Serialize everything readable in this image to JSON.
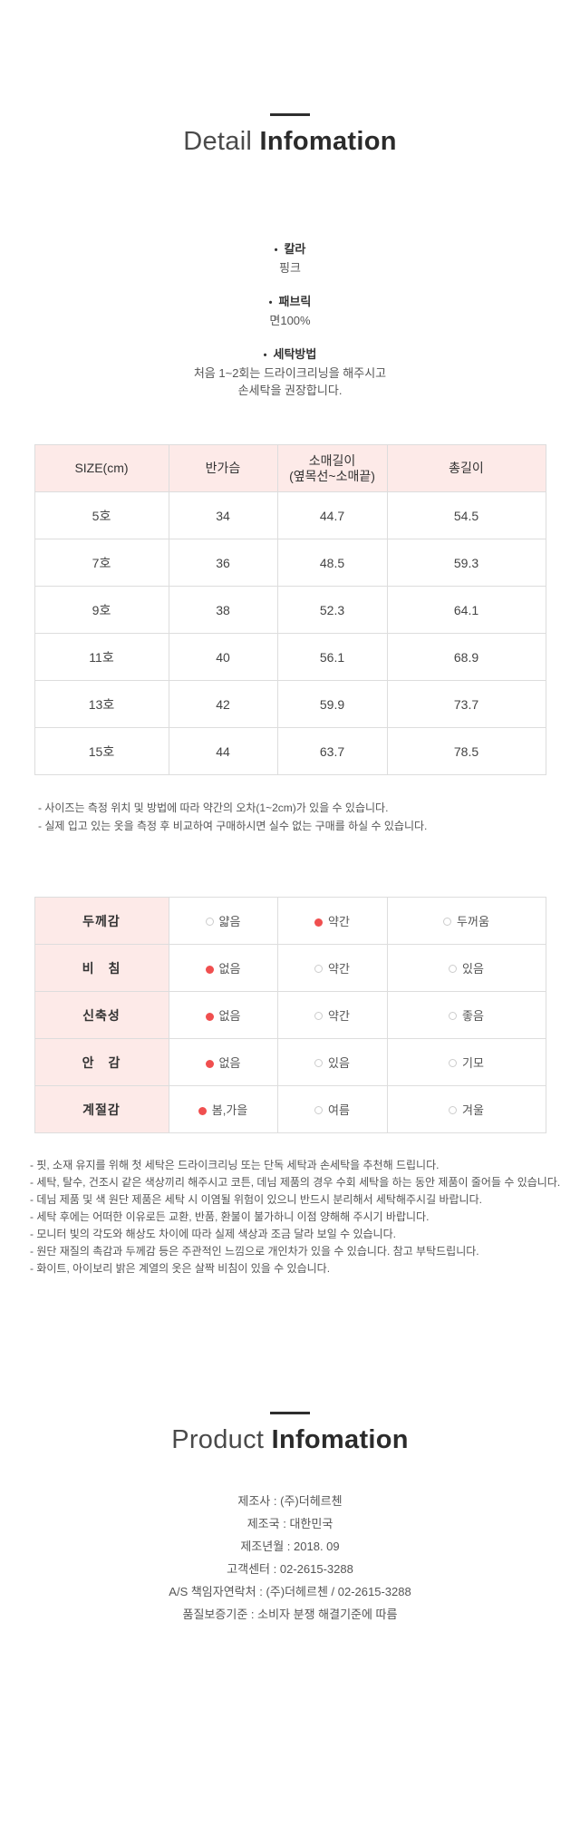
{
  "colors": {
    "table_header_bg": "#fdeae8",
    "table_border": "#dddddd",
    "selected_dot": "#f04f4f",
    "unselected_ring": "#cccccc",
    "page_background": "#ffffff"
  },
  "detail_section": {
    "title_light": "Detail",
    "title_bold": "Infomation",
    "bullet_char": "•",
    "specs": [
      {
        "label": "칼라",
        "lines": [
          "핑크"
        ]
      },
      {
        "label": "패브릭",
        "lines": [
          "면100%"
        ]
      },
      {
        "label": "세탁방법",
        "lines": [
          "처음 1~2회는 드라이크리닝을 해주시고",
          "손세탁을 권장합니다."
        ]
      }
    ]
  },
  "size_table": {
    "headers": [
      "SIZE(cm)",
      "반가슴",
      "소매길이\n(옆목선~소매끝)",
      "총길이"
    ],
    "rows": [
      [
        "5호",
        "34",
        "44.7",
        "54.5"
      ],
      [
        "7호",
        "36",
        "48.5",
        "59.3"
      ],
      [
        "9호",
        "38",
        "52.3",
        "64.1"
      ],
      [
        "11호",
        "40",
        "56.1",
        "68.9"
      ],
      [
        "13호",
        "42",
        "59.9",
        "73.7"
      ],
      [
        "15호",
        "44",
        "63.7",
        "78.5"
      ]
    ]
  },
  "size_notes": [
    "- 사이즈는 측정 위치 및 방법에 따라 약간의 오차(1~2cm)가 있을 수 있습니다.",
    "- 실제 입고 있는 옷을 측정 후 비교하여 구매하시면 실수 없는 구매를 하실 수 있습니다."
  ],
  "attribute_table": {
    "rows": [
      {
        "label": "두께감",
        "options": [
          {
            "text": "얇음",
            "selected": false
          },
          {
            "text": "약간",
            "selected": true
          },
          {
            "text": "두꺼움",
            "selected": false
          }
        ]
      },
      {
        "label": "비　침",
        "options": [
          {
            "text": "없음",
            "selected": true
          },
          {
            "text": "약간",
            "selected": false
          },
          {
            "text": "있음",
            "selected": false
          }
        ]
      },
      {
        "label": "신축성",
        "options": [
          {
            "text": "없음",
            "selected": true
          },
          {
            "text": "약간",
            "selected": false
          },
          {
            "text": "좋음",
            "selected": false
          }
        ]
      },
      {
        "label": "안　감",
        "options": [
          {
            "text": "없음",
            "selected": true
          },
          {
            "text": "있음",
            "selected": false
          },
          {
            "text": "기모",
            "selected": false
          }
        ]
      },
      {
        "label": "계절감",
        "options": [
          {
            "text": "봄,가을",
            "selected": true
          },
          {
            "text": "여름",
            "selected": false
          },
          {
            "text": "겨울",
            "selected": false
          }
        ]
      }
    ]
  },
  "care_notes": [
    "- 핏, 소재 유지를 위해 첫 세탁은 드라이크리닝 또는 단독 세탁과 손세탁을 추천해 드립니다.",
    "- 세탁, 탈수, 건조시 같은 색상끼리 해주시고 코튼, 데님 제품의 경우 수회 세탁을 하는 동안 제품이 줄어들 수 있습니다.",
    "- 데님 제품 및 색 원단 제품은 세탁 시 이염될 위험이 있으니 반드시 분리해서 세탁해주시길 바랍니다.",
    "- 세탁 후에는 어떠한 이유로든 교환, 반품, 환불이 불가하니 이점 양해해 주시기 바랍니다.",
    "- 모니터 빛의 각도와 해상도 차이에 따라 실제 색상과 조금 달라 보일 수 있습니다.",
    "- 원단 재질의 촉감과 두께감 등은 주관적인 느낌으로 개인차가 있을 수 있습니다. 참고 부탁드립니다.",
    "- 화이트, 아이보리 밝은 계열의 옷은 살짝 비침이 있을 수 있습니다."
  ],
  "product_section": {
    "title_light": "Product",
    "title_bold": "Infomation",
    "info": [
      {
        "label": "제조사",
        "value": "(주)더헤르첸"
      },
      {
        "label": "제조국",
        "value": "대한민국"
      },
      {
        "label": "제조년월",
        "value": "2018. 09"
      },
      {
        "label": "고객센터",
        "value": "02-2615-3288"
      },
      {
        "label": "A/S 책임자연락처",
        "value": "(주)더헤르첸 / 02-2615-3288"
      },
      {
        "label": "품질보증기준",
        "value": "소비자 분쟁 해결기준에 따름"
      }
    ]
  }
}
